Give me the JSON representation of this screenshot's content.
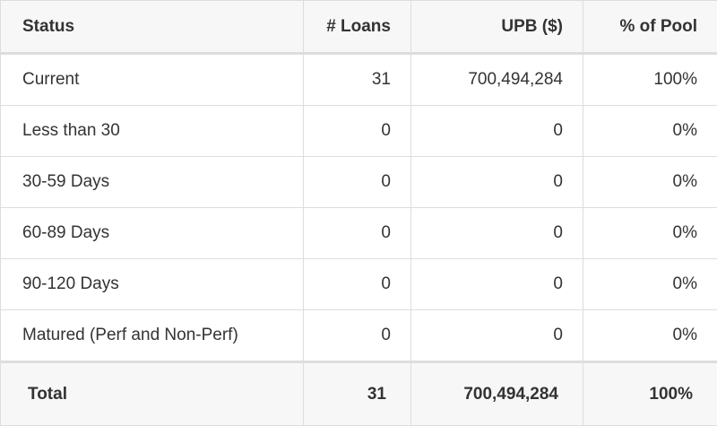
{
  "table": {
    "header": [
      "Status",
      "# Loans",
      "UPB ($)",
      "% of Pool"
    ],
    "rows": [
      [
        "Current",
        "31",
        "700,494,284",
        "100%"
      ],
      [
        "Less than 30",
        "0",
        "0",
        "0%"
      ],
      [
        "30-59 Days",
        "0",
        "0",
        "0%"
      ],
      [
        "60-89 Days",
        "0",
        "0",
        "0%"
      ],
      [
        "90-120 Days",
        "0",
        "0",
        "0%"
      ],
      [
        "Matured (Perf and Non-Perf)",
        "0",
        "0",
        "0%"
      ]
    ],
    "total": [
      "Total",
      "31",
      "700,494,284",
      "100%"
    ]
  }
}
